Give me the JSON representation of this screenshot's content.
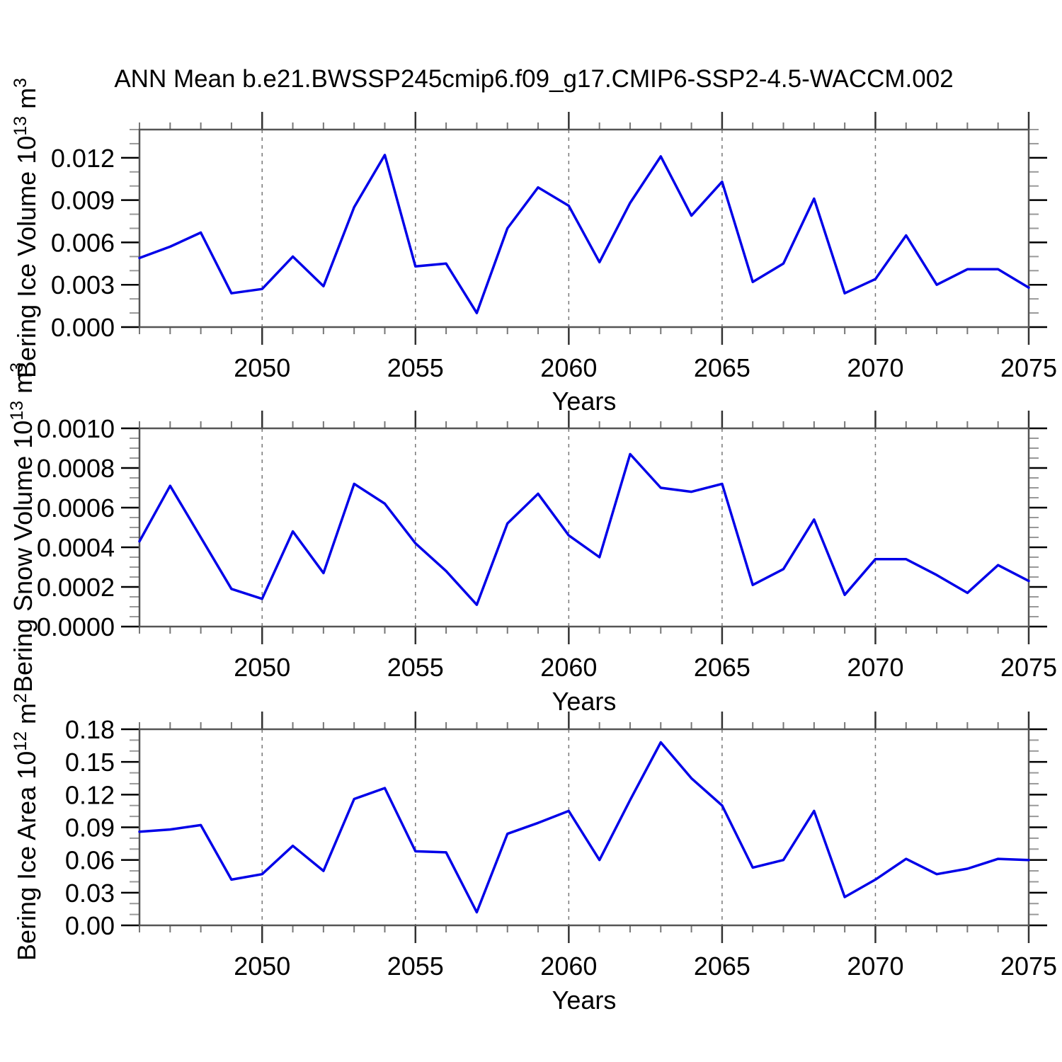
{
  "title": "ANN Mean b.e21.BWSSP245cmip6.f09_g17.CMIP6-SSP2-4.5-WACCM.002",
  "colors": {
    "line": "#0000e8",
    "plot_border": "#555555",
    "x_major_tick": "#333333",
    "x_minor_tick": "#777777",
    "y_major_tick": "#000000",
    "y_minor_tick": "#999999",
    "dashed_grid": "#777777",
    "text": "#000000",
    "background": "#ffffff"
  },
  "x_axis": {
    "label": "Years",
    "start_year": 2046,
    "end_year": 2075,
    "years": [
      2046,
      2047,
      2048,
      2049,
      2050,
      2051,
      2052,
      2053,
      2054,
      2055,
      2056,
      2057,
      2058,
      2059,
      2060,
      2061,
      2062,
      2063,
      2064,
      2065,
      2066,
      2067,
      2068,
      2069,
      2070,
      2071,
      2072,
      2073,
      2074,
      2075
    ],
    "major_tick_years": [
      2050,
      2055,
      2060,
      2065,
      2070,
      2075
    ],
    "major_tick_labels": [
      "2050",
      "2055",
      "2060",
      "2065",
      "2070",
      "2075"
    ],
    "dashed_gridline_years": [
      2050,
      2055,
      2060,
      2065,
      2070
    ],
    "minor_tick_interval_years": 1
  },
  "chart_data": [
    {
      "type": "line",
      "panel": "bering-ice-volume",
      "ylabel": {
        "base": "Bering Ice Volume 10",
        "exponent": "13",
        "unit": " m",
        "unit_exponent": "3"
      },
      "xlabel": "Years",
      "values": [
        0.0049,
        0.0057,
        0.0067,
        0.0024,
        0.0027,
        0.005,
        0.0029,
        0.0085,
        0.0122,
        0.0043,
        0.0045,
        0.001,
        0.007,
        0.0099,
        0.0086,
        0.0046,
        0.0088,
        0.0121,
        0.0079,
        0.0103,
        0.0032,
        0.0045,
        0.0091,
        0.0024,
        0.0034,
        0.0065,
        0.003,
        0.0041,
        0.0041,
        0.0028
      ],
      "ylim": [
        0,
        0.014
      ],
      "ytick_values": [
        0.0,
        0.003,
        0.006,
        0.009,
        0.012
      ],
      "ytick_labels": [
        "0.000",
        "0.003",
        "0.006",
        "0.009",
        "0.012"
      ],
      "yminor_interval": 0.001,
      "grid": "vertical-dashed",
      "legend": "none"
    },
    {
      "type": "line",
      "panel": "bering-snow-volume",
      "ylabel": {
        "base": "Bering Snow Volume 10",
        "exponent": "13",
        "unit": " m",
        "unit_exponent": "3"
      },
      "xlabel": "Years",
      "values": [
        0.00043,
        0.00071,
        0.00045,
        0.00019,
        0.00014,
        0.00048,
        0.00027,
        0.00072,
        0.00062,
        0.00042,
        0.00028,
        0.00011,
        0.00052,
        0.00067,
        0.00046,
        0.00035,
        0.00087,
        0.0007,
        0.00068,
        0.00072,
        0.00021,
        0.00029,
        0.00054,
        0.00016,
        0.00034,
        0.00034,
        0.00026,
        0.00017,
        0.00031,
        0.00023
      ],
      "ylim": [
        0,
        0.001
      ],
      "ytick_values": [
        0.0,
        0.0002,
        0.0004,
        0.0006,
        0.0008,
        0.001
      ],
      "ytick_labels": [
        "0.0000",
        "0.0002",
        "0.0004",
        "0.0006",
        "0.0008",
        "0.0010"
      ],
      "yminor_interval": 5e-05,
      "grid": "vertical-dashed",
      "legend": "none"
    },
    {
      "type": "line",
      "panel": "bering-ice-area",
      "ylabel": {
        "base": "Bering Ice Area 10",
        "exponent": "12",
        "unit": " m",
        "unit_exponent": "2"
      },
      "xlabel": "Years",
      "values": [
        0.086,
        0.088,
        0.092,
        0.042,
        0.047,
        0.073,
        0.05,
        0.116,
        0.126,
        0.068,
        0.067,
        0.012,
        0.084,
        0.094,
        0.105,
        0.06,
        0.115,
        0.168,
        0.135,
        0.11,
        0.053,
        0.06,
        0.105,
        0.026,
        0.042,
        0.061,
        0.047,
        0.052,
        0.061,
        0.06
      ],
      "ylim": [
        0,
        0.18
      ],
      "ytick_values": [
        0.0,
        0.03,
        0.06,
        0.09,
        0.12,
        0.15,
        0.18
      ],
      "ytick_labels": [
        "0.00",
        "0.03",
        "0.06",
        "0.09",
        "0.12",
        "0.15",
        "0.18"
      ],
      "yminor_interval": 0.01,
      "grid": "vertical-dashed",
      "legend": "none"
    }
  ]
}
